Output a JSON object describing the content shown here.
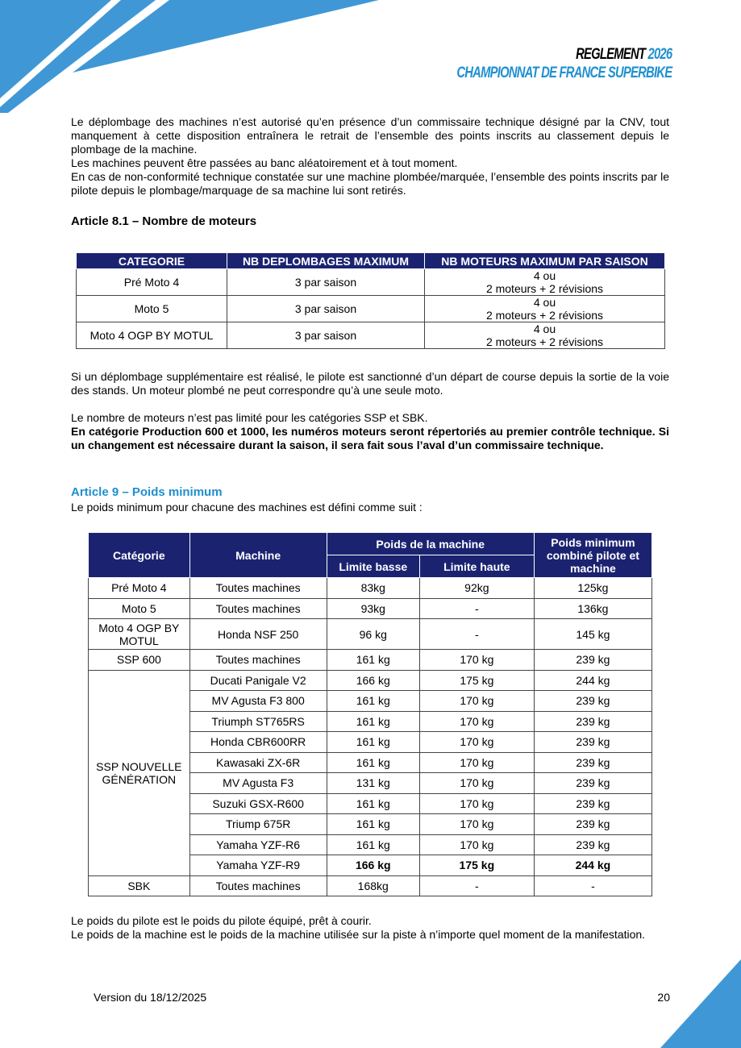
{
  "header": {
    "logo_line1": "REGLEMENT",
    "logo_year": "2026",
    "logo_line2": "CHAMPIONNAT DE FRANCE SUPERBIKE",
    "accent_color": "#1e90d0",
    "table_header_color": "#1b2371"
  },
  "intro": {
    "p1": "Le déplombage des machines n’est autorisé qu’en présence d’un commissaire technique désigné par la CNV, tout manquement à cette disposition entraînera le retrait de l’ensemble des points inscrits au classement depuis le plombage de la machine.",
    "p2": "Les machines peuvent être passées au banc aléatoirement et à tout moment.",
    "p3": "En cas de non-conformité technique constatée sur une machine plombée/marquée, l’ensemble des points inscrits par le pilote depuis le plombage/marquage de sa machine lui sont retirés."
  },
  "article81": {
    "title": "Article 8.1 – Nombre de moteurs",
    "headers": [
      "CATEGORIE",
      "NB DEPLOMBAGES MAXIMUM",
      "NB MOTEURS MAXIMUM PAR SAISON"
    ],
    "rows": [
      {
        "cat": "Pré Moto 4",
        "deplombages": "3 par saison",
        "moteurs1": "4 ou",
        "moteurs2": "2 moteurs + 2 révisions"
      },
      {
        "cat": "Moto 5",
        "deplombages": "3 par saison",
        "moteurs1": "4 ou",
        "moteurs2": "2 moteurs + 2 révisions"
      },
      {
        "cat": "Moto 4 OGP BY MOTUL",
        "deplombages": "3 par saison",
        "moteurs1": "4 ou",
        "moteurs2": "2 moteurs + 2 révisions"
      }
    ],
    "p1": "Si un déplombage supplémentaire est réalisé, le pilote est sanctionné d’un départ de course depuis la sortie de la voie des stands. Un moteur plombé ne peut correspondre qu’à une seule moto.",
    "p2": "Le nombre de moteurs n’est pas limité pour les catégories SSP et SBK.",
    "p3": "En catégorie Production 600 et 1000, les numéros moteurs seront répertoriés au premier contrôle technique. Si un changement est nécessaire durant la saison, il sera fait sous l’aval d’un commissaire technique."
  },
  "article9": {
    "title": "Article 9 – Poids minimum",
    "intro": "Le poids minimum pour chacune des machines est défini comme suit :",
    "headers": {
      "categorie": "Catégorie",
      "machine": "Machine",
      "poids": "Poids de la machine",
      "basse": "Limite basse",
      "haute": "Limite haute",
      "combine": "Poids minimum combiné pilote et machine"
    },
    "rows": [
      {
        "cat": "Pré Moto 4",
        "machine": "Toutes machines",
        "basse": "83kg",
        "haute": "92kg",
        "combine": "125kg"
      },
      {
        "cat": "Moto 5",
        "machine": "Toutes machines",
        "basse": "93kg",
        "haute": "-",
        "combine": "136kg"
      },
      {
        "cat": "Moto 4 OGP BY MOTUL",
        "machine": "Honda NSF 250",
        "basse": "96 kg",
        "haute": "-",
        "combine": "145 kg"
      },
      {
        "cat": "SSP 600",
        "machine": "Toutes machines",
        "basse": "161 kg",
        "haute": "170 kg",
        "combine": "239 kg"
      },
      {
        "cat": "SSP NOUVELLE GÉNÉRATION",
        "machine": "Ducati Panigale V2",
        "basse": "166 kg",
        "haute": "175 kg",
        "combine": "244 kg"
      },
      {
        "machine": "MV Agusta F3 800",
        "basse": "161 kg",
        "haute": "170 kg",
        "combine": "239 kg"
      },
      {
        "machine": "Triumph ST765RS",
        "basse": "161 kg",
        "haute": "170 kg",
        "combine": "239 kg"
      },
      {
        "machine": "Honda CBR600RR",
        "basse": "161 kg",
        "haute": "170 kg",
        "combine": "239 kg"
      },
      {
        "machine": "Kawasaki ZX-6R",
        "basse": "161 kg",
        "haute": "170 kg",
        "combine": "239 kg"
      },
      {
        "machine": "MV Agusta F3",
        "basse": "131 kg",
        "haute": "170 kg",
        "combine": "239 kg"
      },
      {
        "machine": "Suzuki GSX-R600",
        "basse": "161 kg",
        "haute": "170 kg",
        "combine": "239 kg"
      },
      {
        "machine": "Triump 675R",
        "basse": "161 kg",
        "haute": "170 kg",
        "combine": "239 kg"
      },
      {
        "machine": "Yamaha YZF-R6",
        "basse": "161 kg",
        "haute": "170 kg",
        "combine": "239 kg"
      },
      {
        "machine": "Yamaha YZF-R9",
        "basse": "166 kg",
        "haute": "175 kg",
        "combine": "244 kg",
        "bold": true
      },
      {
        "cat": "SBK",
        "machine": "Toutes machines",
        "basse": "168kg",
        "haute": "-",
        "combine": "-"
      }
    ],
    "p1": "Le poids du pilote est le poids du pilote équipé, prêt à courir.",
    "p2": "Le poids de la machine est le poids de la machine utilisée sur la piste à n’importe quel moment de la manifestation."
  },
  "footer": {
    "version": "Version du 18/12/2025",
    "page": "20"
  }
}
